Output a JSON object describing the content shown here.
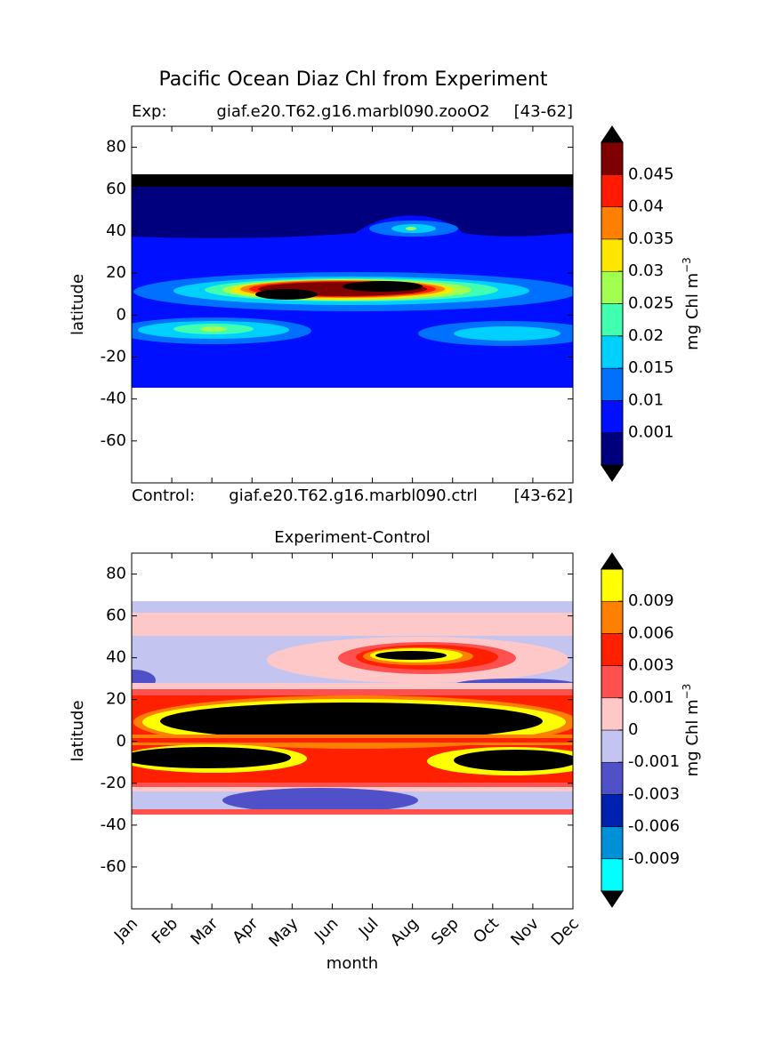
{
  "title": "Pacific Ocean Diaz Chl from Experiment",
  "chart_data": [
    {
      "type": "contour",
      "header": {
        "left": "Exp:",
        "center": "giaf.e20.T62.g16.marbl090.zooO2",
        "right": "[43-62]"
      },
      "footer": {
        "left": "Control:",
        "center": "giaf.e20.T62.g16.marbl090.ctrl",
        "right": "[43-62]"
      },
      "ylabel": "latitude",
      "ylim": [
        -80,
        90
      ],
      "yticks": [
        -60,
        -40,
        -20,
        0,
        20,
        40,
        60,
        80
      ],
      "colorbar": {
        "label": "mg Chl m",
        "label_exponent": "−3",
        "levels": [
          0.001,
          0.01,
          0.015,
          0.02,
          0.025,
          0.03,
          0.035,
          0.04,
          0.045
        ],
        "colors": [
          "#00007f",
          "#0010ff",
          "#0070ff",
          "#00d0ff",
          "#40ffb0",
          "#a0ff50",
          "#ffe600",
          "#ff8000",
          "#ff1a00",
          "#7f0000"
        ],
        "extend_colors": [
          "#000000",
          "#000000"
        ]
      }
    },
    {
      "type": "contour",
      "title": "Experiment-Control",
      "ylabel": "latitude",
      "xlabel": "month",
      "ylim": [
        -80,
        90
      ],
      "yticks": [
        -60,
        -40,
        -20,
        0,
        20,
        40,
        60,
        80
      ],
      "categories": [
        "Jan",
        "Feb",
        "Mar",
        "Apr",
        "May",
        "Jun",
        "Jul",
        "Aug",
        "Sep",
        "Oct",
        "Nov",
        "Dec"
      ],
      "colorbar": {
        "label": "mg Chl m",
        "label_exponent": "−3",
        "levels": [
          -0.009,
          -0.006,
          -0.003,
          -0.001,
          0,
          0.001,
          0.003,
          0.006,
          0.009
        ],
        "colors": [
          "#00ffff",
          "#0090d8",
          "#0020b0",
          "#5050c8",
          "#c4c4f0",
          "#ffc8c8",
          "#ff5050",
          "#ff2000",
          "#ff8000",
          "#ffff00"
        ],
        "extend_colors": [
          "#000000",
          "#000000"
        ]
      }
    }
  ]
}
